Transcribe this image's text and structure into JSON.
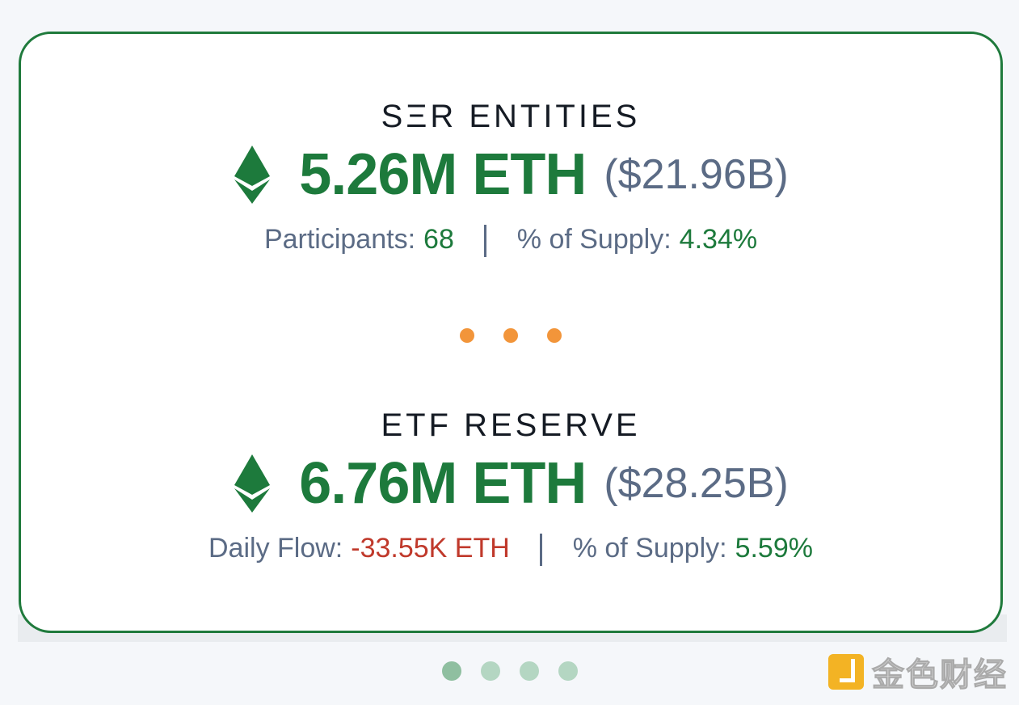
{
  "sections": [
    {
      "title": "SΞR ENTITIES",
      "amount": "5.26M ETH",
      "usd": "($21.96B)",
      "stat1_label": "Participants:",
      "stat1_value": "68",
      "stat2_label": "% of Supply:",
      "stat2_value": "4.34%"
    },
    {
      "title": "ETF RESERVE",
      "amount": "6.76M ETH",
      "usd": "($28.25B)",
      "stat1_label": "Daily Flow:",
      "stat1_value": "-33.55K ETH",
      "stat2_label": "% of Supply:",
      "stat2_value": "5.59%"
    }
  ],
  "icons": {
    "eth": "ethereum-icon"
  },
  "colors": {
    "accent_green": "#1d7a3c",
    "muted_blue": "#5b6b85",
    "negative_red": "#c0392b",
    "dot_orange": "#f2953a",
    "card_border": "#1f7a3c"
  },
  "carousel": {
    "page_count": 4,
    "active_index": 0
  },
  "watermark": {
    "text": "金色财经"
  }
}
